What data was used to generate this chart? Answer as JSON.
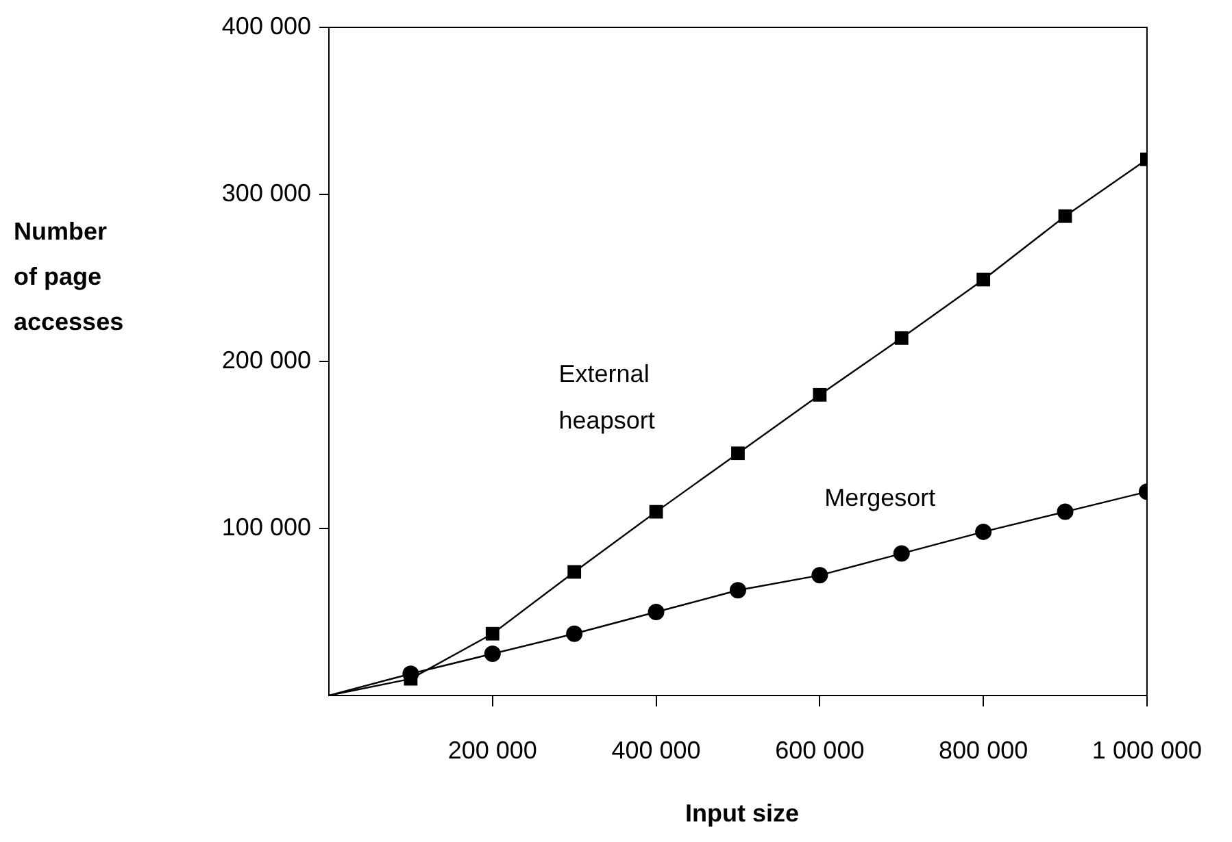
{
  "chart_data": {
    "type": "line",
    "xlabel": "Input size",
    "ylabel": "Number of page accesses",
    "xlim": [
      0,
      1000000
    ],
    "xticks": [
      {
        "value": 200000,
        "label": "200 000"
      },
      {
        "value": 400000,
        "label": "400 000"
      },
      {
        "value": 600000,
        "label": "600 000"
      },
      {
        "value": 800000,
        "label": "800 000"
      },
      {
        "value": 1000000,
        "label": "1 000 000"
      }
    ],
    "ylim": [
      0,
      400000
    ],
    "yticks": [
      {
        "value": 100000,
        "label": "100 000"
      },
      {
        "value": 200000,
        "label": "200 000"
      },
      {
        "value": 300000,
        "label": "300 000"
      },
      {
        "value": 400000,
        "label": "400 000"
      }
    ],
    "x": [
      0,
      100000,
      200000,
      300000,
      400000,
      500000,
      600000,
      700000,
      800000,
      900000,
      1000000
    ],
    "series": [
      {
        "name": "External heapsort",
        "color": "#000000",
        "marker": "square",
        "values": [
          0,
          10000,
          37000,
          74000,
          110000,
          145000,
          180000,
          214000,
          249000,
          287000,
          321000
        ]
      },
      {
        "name": "Mergesort",
        "color": "#000000",
        "marker": "circle",
        "values": [
          0,
          13000,
          25000,
          37000,
          50000,
          63000,
          72000,
          85000,
          98000,
          110000,
          122000
        ]
      }
    ],
    "grid": false,
    "legend": false,
    "line_style": "solid"
  }
}
